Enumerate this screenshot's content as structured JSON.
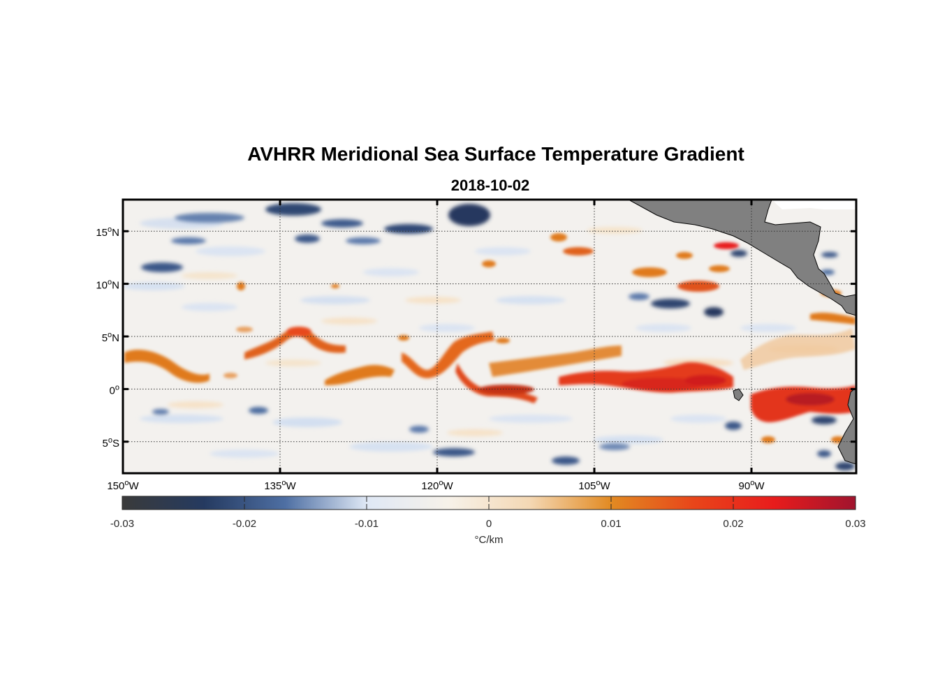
{
  "title": "AVHRR Meridional Sea Surface Temperature Gradient",
  "subtitle": "2018-10-02",
  "map": {
    "lon_range": [
      -150,
      -80
    ],
    "lat_range": [
      -8,
      18
    ],
    "lon_ticks": [
      {
        "value": -150,
        "deg": "150",
        "hemi": "W"
      },
      {
        "value": -135,
        "deg": "135",
        "hemi": "W"
      },
      {
        "value": -120,
        "deg": "120",
        "hemi": "W"
      },
      {
        "value": -105,
        "deg": "105",
        "hemi": "W"
      },
      {
        "value": -90,
        "deg": "90",
        "hemi": "W"
      }
    ],
    "lat_ticks": [
      {
        "value": 15,
        "deg": "15",
        "hemi": "N"
      },
      {
        "value": 10,
        "deg": "10",
        "hemi": "N"
      },
      {
        "value": 5,
        "deg": "5",
        "hemi": "N"
      },
      {
        "value": 0,
        "deg": "0",
        "hemi": ""
      },
      {
        "value": -5,
        "deg": "5",
        "hemi": "S"
      }
    ],
    "gridlines": true,
    "land_color": "#808080"
  },
  "colorbar": {
    "range": [
      -0.03,
      0.03
    ],
    "ticks": [
      "-0.03",
      "-0.02",
      "-0.01",
      "0",
      "0.01",
      "0.02",
      "0.03"
    ],
    "tick_values": [
      -0.03,
      -0.02,
      -0.01,
      0,
      0.01,
      0.02,
      0.03
    ],
    "unit_label": "°C/km",
    "colors": [
      "#3a3a3a",
      "#253a60",
      "#4e6fa3",
      "#dfe8f5",
      "#f7f2ea",
      "#f4d8b4",
      "#e28a22",
      "#e8461a",
      "#e81c1c",
      "#a0142e"
    ]
  }
}
